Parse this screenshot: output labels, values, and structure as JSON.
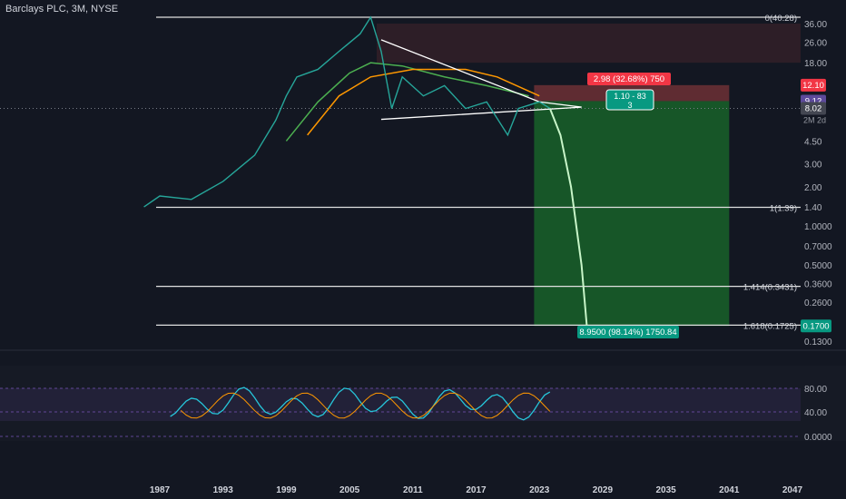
{
  "header": {
    "title": "Barclays PLC, 3M, NYSE"
  },
  "colors": {
    "background": "#131722",
    "up": "#26a69a",
    "down": "#ef5350",
    "ma_green": "#4caf50",
    "ma_orange": "#ff9800",
    "rsi": "#26c6da",
    "rsi_signal": "#ff9800",
    "band": "#7e57c2"
  },
  "chart_data": {
    "type": "line",
    "title": "Barclays PLC, 3M, NYSE",
    "x_axis": {
      "ticks": [
        "1987",
        "1993",
        "1999",
        "2005",
        "2011",
        "2017",
        "2023",
        "2029",
        "2035",
        "2041",
        "2047"
      ]
    },
    "y_axis": {
      "scale": "log",
      "ticks": [
        "36.00",
        "26.00",
        "18.00",
        "9.12",
        "8.02",
        "4.50",
        "3.00",
        "2.00",
        "1.40",
        "1.0000",
        "0.7000",
        "0.5000",
        "0.3600",
        "0.2600",
        "0.1300"
      ]
    },
    "price_labels": {
      "current": "8.02",
      "line": "9.12",
      "target_top": "12.10",
      "target_bottom": "0.1700",
      "bar_label": "2M 2d"
    },
    "fib_levels": [
      {
        "label": "0(40.28)",
        "value": 40.28
      },
      {
        "label": "1(1.39)",
        "value": 1.39
      },
      {
        "label": "1.414(0.3431)",
        "value": 0.3431
      },
      {
        "label": "1.618(0.1725)",
        "value": 0.1725
      }
    ],
    "price_series": [
      {
        "x": 1985.5,
        "y": 1.4
      },
      {
        "x": 1987,
        "y": 1.7
      },
      {
        "x": 1990,
        "y": 1.6
      },
      {
        "x": 1993,
        "y": 2.2
      },
      {
        "x": 1996,
        "y": 3.5
      },
      {
        "x": 1998,
        "y": 6.5
      },
      {
        "x": 1999,
        "y": 10
      },
      {
        "x": 2000,
        "y": 14
      },
      {
        "x": 2002,
        "y": 16
      },
      {
        "x": 2004,
        "y": 22
      },
      {
        "x": 2006,
        "y": 30
      },
      {
        "x": 2007,
        "y": 40.28
      },
      {
        "x": 2008,
        "y": 22
      },
      {
        "x": 2009,
        "y": 8
      },
      {
        "x": 2010,
        "y": 14
      },
      {
        "x": 2012,
        "y": 10
      },
      {
        "x": 2014,
        "y": 12
      },
      {
        "x": 2016,
        "y": 8
      },
      {
        "x": 2018,
        "y": 9
      },
      {
        "x": 2020,
        "y": 5
      },
      {
        "x": 2021,
        "y": 8
      },
      {
        "x": 2023,
        "y": 9
      },
      {
        "x": 2024,
        "y": 8.02
      },
      {
        "x": 2025,
        "y": 5
      },
      {
        "x": 2026,
        "y": 2
      },
      {
        "x": 2027,
        "y": 0.5
      },
      {
        "x": 2027.5,
        "y": 0.17
      }
    ],
    "position": {
      "label_loss": "2.98 (32.68%) 750",
      "label_ratio_line1": "1.10 - 83",
      "label_ratio_line2": "3",
      "label_profit": "8.9500 (98.14%) 1750.84",
      "entry": 9.12,
      "stop": 12.1,
      "target": 0.17,
      "x_start": 2022.5,
      "x_end": 2041
    },
    "rsi": {
      "ticks": [
        "80.00",
        "40.00",
        "0.0000"
      ]
    }
  }
}
